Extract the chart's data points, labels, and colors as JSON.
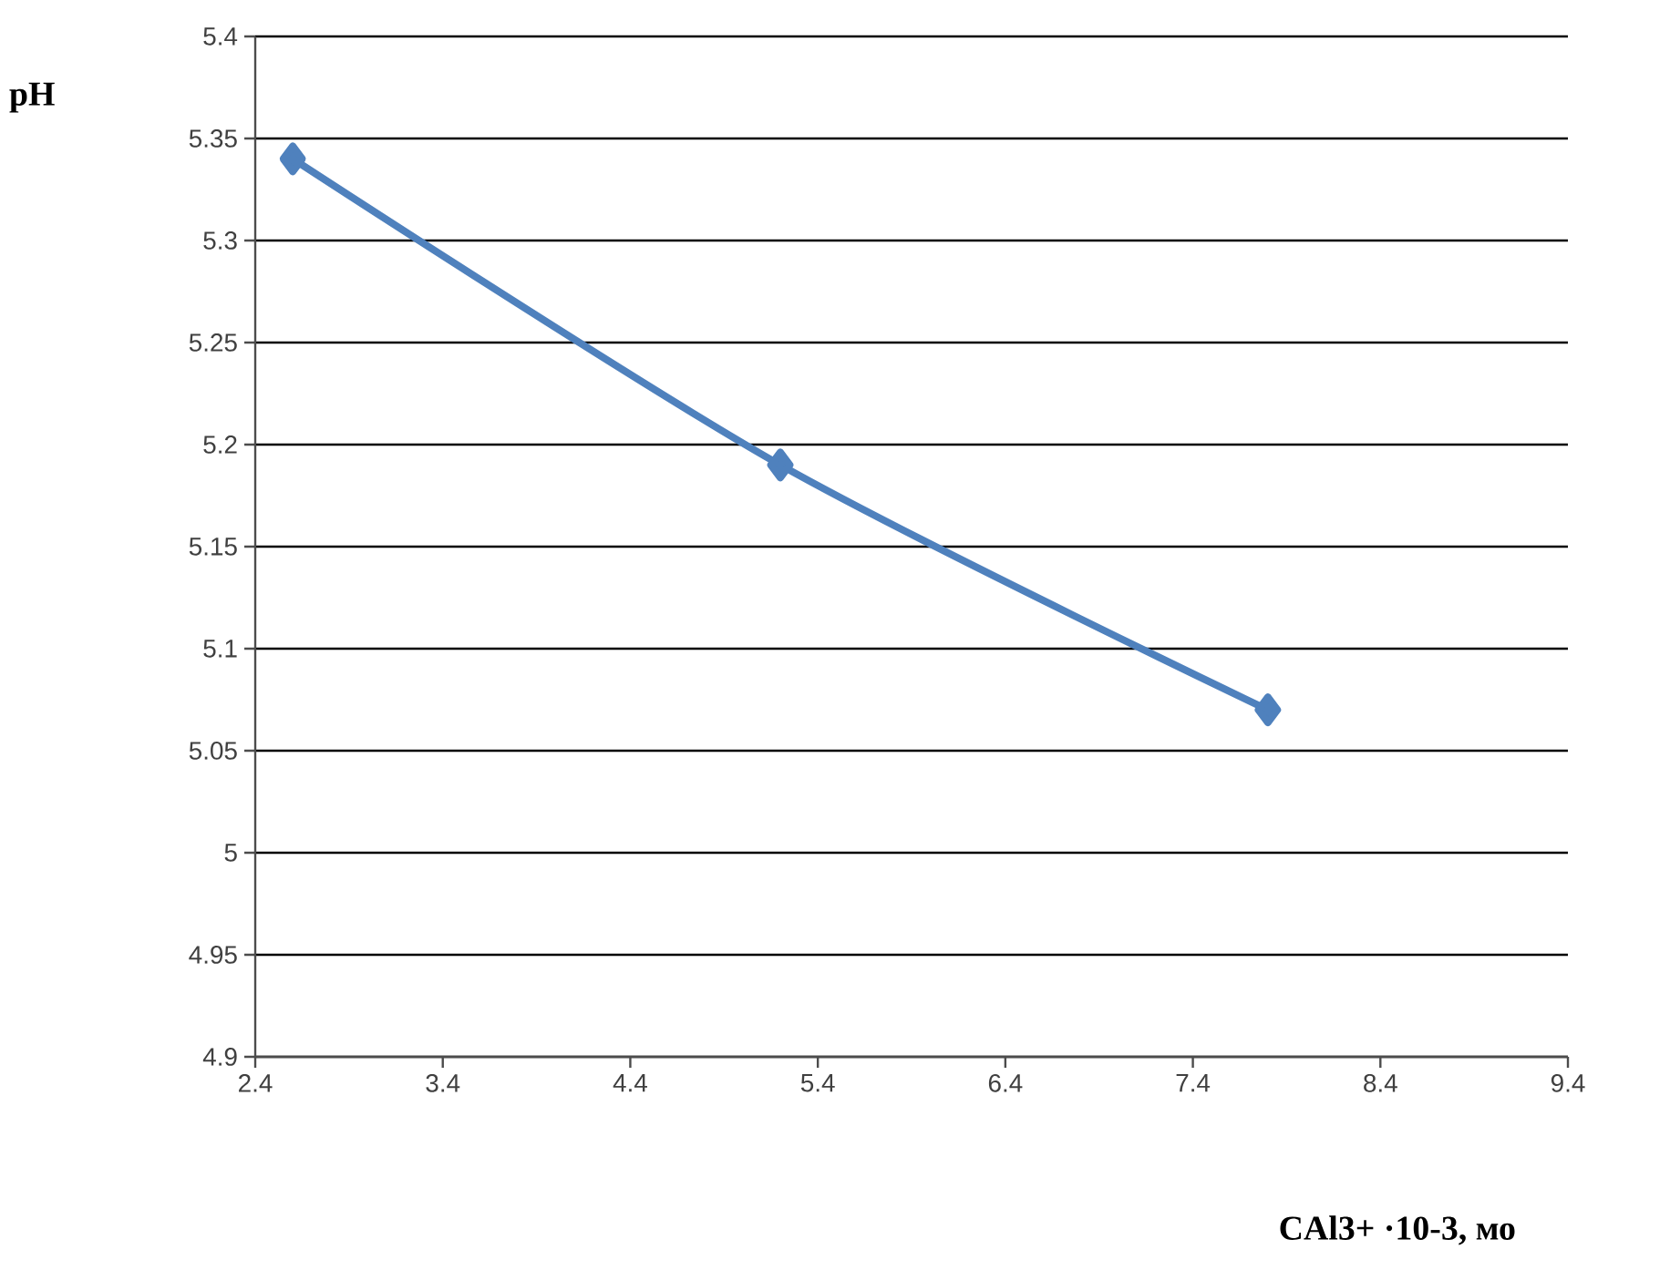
{
  "chart_data": {
    "type": "line",
    "xlabel": "CAl3+ ·10-3, мо",
    "ylabel": "pH",
    "x": [
      2.6,
      5.2,
      7.8
    ],
    "series": [
      {
        "color": "#4f81bd",
        "values": [
          5.34,
          5.19,
          5.07
        ]
      }
    ],
    "xlim": [
      2.4,
      9.4
    ],
    "xticks": [
      2.4,
      3.4,
      4.4,
      5.4,
      6.4,
      7.4,
      8.4,
      9.4
    ],
    "ylim": [
      4.9,
      5.4
    ],
    "yticks": [
      4.9,
      4.95,
      5,
      5.05,
      5.1,
      5.15,
      5.2,
      5.25,
      5.3,
      5.35,
      5.4
    ],
    "grid": "y",
    "marker": "diamond",
    "line_style": "solid"
  }
}
